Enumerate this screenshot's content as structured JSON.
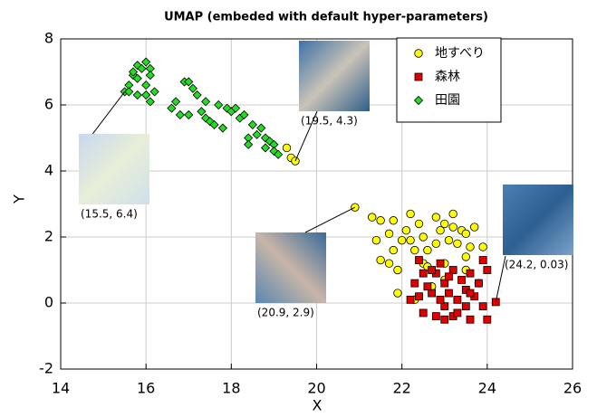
{
  "chart_data": {
    "type": "scatter",
    "title": "UMAP (embeded with default hyper-parameters)",
    "x_label": "X",
    "y_label": "Y",
    "xlim": [
      14,
      26
    ],
    "ylim": [
      -2,
      8
    ],
    "xticks": [
      14,
      16,
      18,
      20,
      22,
      24,
      26
    ],
    "yticks": [
      -2,
      0,
      2,
      4,
      6,
      8
    ],
    "grid": true,
    "legend_position": "upper right",
    "series": [
      {
        "name": "地すべり",
        "color": "#ffff00",
        "marker": "circle",
        "x": [
          19.3,
          19.4,
          19.5,
          20.9,
          21.3,
          21.5,
          21.8,
          21.4,
          21.7,
          21.8,
          21.5,
          21.7,
          21.9,
          21.9,
          22.0,
          22.1,
          22.2,
          22.2,
          22.3,
          22.4,
          22.5,
          22.6,
          22.8,
          22.9,
          23.0,
          23.1,
          23.2,
          23.2,
          23.3,
          23.4,
          23.5,
          23.6,
          23.7,
          23.9,
          23.5,
          23.0,
          22.5,
          22.7,
          23.0,
          22.3,
          23.8,
          22.8,
          23.5,
          22.6
        ],
        "y": [
          4.7,
          4.4,
          4.3,
          2.9,
          2.6,
          2.5,
          2.5,
          1.9,
          2.1,
          1.6,
          1.3,
          1.2,
          1.0,
          0.3,
          1.9,
          2.2,
          2.7,
          1.9,
          1.6,
          2.4,
          2.0,
          1.6,
          1.8,
          2.2,
          2.4,
          1.9,
          2.7,
          2.3,
          1.8,
          2.2,
          1.4,
          1.7,
          2.3,
          1.7,
          1.0,
          1.2,
          1.2,
          0.5,
          0.7,
          0.1,
          0.6,
          2.6,
          2.1,
          1.1
        ]
      },
      {
        "name": "森林",
        "color": "#e00000",
        "marker": "square",
        "x": [
          24.2,
          22.2,
          22.4,
          22.3,
          22.5,
          22.7,
          22.8,
          22.9,
          23.0,
          23.1,
          23.2,
          23.3,
          23.4,
          23.5,
          23.6,
          23.7,
          23.8,
          23.9,
          24.0,
          23.9,
          24.0,
          23.6,
          23.2,
          23.0,
          22.8,
          22.5,
          23.0,
          22.9,
          22.6,
          23.3,
          23.6,
          23.5,
          23.1,
          22.4,
          22.7
        ],
        "y": [
          0.03,
          0.1,
          0.2,
          0.6,
          0.9,
          0.3,
          0.9,
          1.2,
          0.6,
          0.3,
          1.0,
          0.1,
          0.7,
          0.4,
          0.9,
          0.2,
          0.6,
          1.3,
          1.0,
          -0.1,
          -0.5,
          -0.5,
          -0.4,
          -0.5,
          -0.4,
          -0.3,
          -0.1,
          0.1,
          0.5,
          -0.3,
          0.3,
          -0.1,
          0.8,
          1.3,
          1.0
        ]
      },
      {
        "name": "田園",
        "color": "#22dd22",
        "marker": "diamond",
        "x": [
          15.5,
          15.6,
          15.7,
          15.8,
          15.6,
          15.7,
          15.8,
          15.9,
          16.0,
          16.1,
          16.1,
          16.0,
          16.2,
          15.8,
          16.0,
          16.1,
          16.6,
          16.7,
          16.9,
          17.0,
          17.1,
          17.2,
          16.8,
          17.0,
          17.3,
          17.4,
          17.5,
          17.6,
          17.4,
          17.7,
          17.8,
          17.9,
          18.0,
          18.1,
          18.2,
          18.3,
          18.5,
          18.4,
          18.4,
          18.6,
          18.8,
          18.8,
          18.9,
          19.0,
          19.0,
          19.1,
          18.7
        ],
        "y": [
          6.4,
          6.6,
          6.9,
          6.8,
          6.4,
          7.0,
          7.2,
          7.1,
          7.3,
          7.1,
          6.9,
          6.6,
          6.4,
          6.3,
          6.3,
          6.1,
          5.9,
          6.1,
          6.7,
          6.7,
          6.5,
          6.3,
          5.7,
          5.7,
          5.8,
          5.6,
          5.5,
          5.4,
          6.1,
          6.0,
          5.3,
          5.9,
          5.8,
          5.9,
          5.6,
          5.7,
          5.4,
          5.0,
          4.8,
          5.1,
          5.0,
          4.7,
          4.9,
          4.8,
          4.6,
          4.5,
          5.3
        ]
      }
    ],
    "annotations": [
      {
        "text": "(15.5, 6.4)",
        "x": 15.5,
        "y": 6.4
      },
      {
        "text": "(19.5, 4.3)",
        "x": 19.5,
        "y": 4.3
      },
      {
        "text": "(20.9, 2.9)",
        "x": 20.9,
        "y": 2.9
      },
      {
        "text": "(24.2, 0.03)",
        "x": 24.2,
        "y": 0.03
      }
    ]
  }
}
